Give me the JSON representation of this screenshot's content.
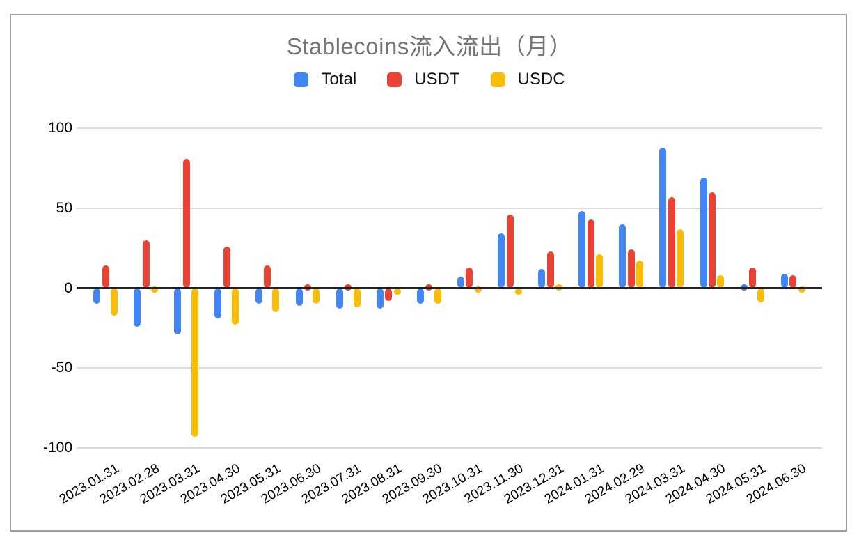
{
  "chart_data": {
    "type": "bar",
    "title": "Stablecoins流入流出（月）",
    "categories": [
      "2023.01.31",
      "2023.02.28",
      "2023.03.31",
      "2023.04.30",
      "2023.05.31",
      "2023.06.30",
      "2023.07.31",
      "2023.08.31",
      "2023.09.30",
      "2023.10.31",
      "2023.11.30",
      "2023.12.31",
      "2024.01.31",
      "2024.02.29",
      "2024.03.31",
      "2024.04.30",
      "2024.05.31",
      "2024.06.30"
    ],
    "series": [
      {
        "name": "Total",
        "color": "#4285F4",
        "values": [
          -10,
          -24,
          -29,
          -19,
          -10,
          -11,
          -13,
          -13,
          -10,
          7,
          34,
          12,
          48,
          40,
          88,
          69,
          3,
          9
        ]
      },
      {
        "name": "USDT",
        "color": "#EA4335",
        "values": [
          14,
          30,
          81,
          26,
          14,
          2,
          3,
          -8,
          3,
          13,
          46,
          23,
          43,
          24,
          57,
          60,
          13,
          8
        ]
      },
      {
        "name": "USDC",
        "color": "#FBBC04",
        "values": [
          -17,
          -2,
          -93,
          -23,
          -15,
          -10,
          -12,
          -4,
          -10,
          -2,
          -4,
          2,
          21,
          17,
          37,
          8,
          -9,
          -1
        ]
      }
    ],
    "xlabel": "",
    "ylabel": "",
    "ylim": [
      -100,
      100
    ],
    "yticks": [
      100,
      50,
      0,
      -50,
      -100
    ],
    "grid": true,
    "legend_position": "top",
    "axis_color": "#212121",
    "grid_color": "#dadada",
    "title_color": "#757575"
  }
}
